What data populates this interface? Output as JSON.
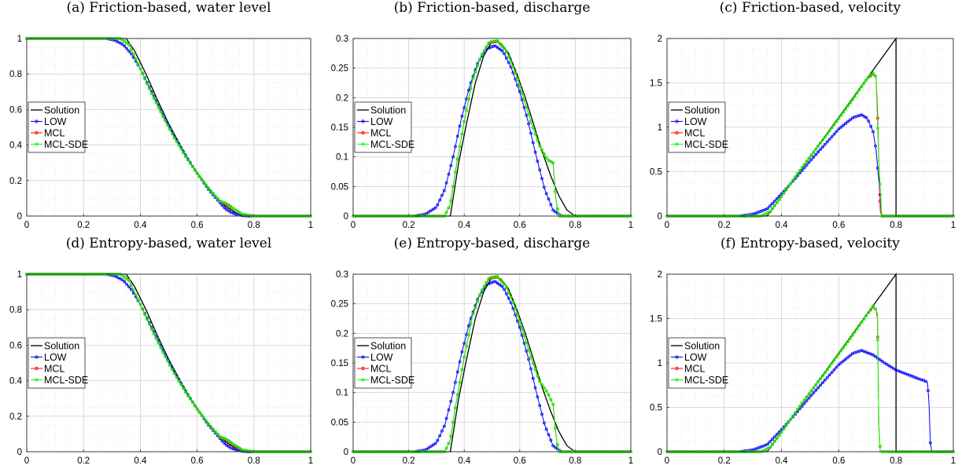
{
  "figure": {
    "panel_titles": [
      "(a) Friction-based, water level",
      "(b) Friction-based, discharge",
      "(c) Friction-based, velocity",
      "(d) Entropy-based, water level",
      "(e) Entropy-based, discharge",
      "(f) Entropy-based, velocity"
    ],
    "legend": [
      "Solution",
      "LOW",
      "MCL",
      "MCL-SDE"
    ],
    "colors": {
      "Solution": "#000000",
      "LOW": "#0000ff",
      "MCL": "#ff0000",
      "MCL-SDE": "#00ff00"
    }
  },
  "chart_data": [
    {
      "type": "line",
      "title": "(a) Friction-based, water level",
      "xlim": [
        0,
        1
      ],
      "ylim": [
        0,
        1
      ],
      "xticks": [
        0,
        0.2,
        0.4,
        0.6,
        0.8,
        1
      ],
      "yticks": [
        0,
        0.2,
        0.4,
        0.6,
        0.8,
        1
      ],
      "grid": true,
      "legend_position": "left",
      "series": [
        {
          "name": "Solution",
          "x": [
            0,
            0.35,
            0.38,
            0.42,
            0.46,
            0.5,
            0.54,
            0.58,
            0.62,
            0.66,
            0.7,
            0.74,
            0.78,
            0.8,
            1
          ],
          "y": [
            1,
            1,
            0.93,
            0.8,
            0.655,
            0.52,
            0.4,
            0.29,
            0.2,
            0.12,
            0.055,
            0.015,
            0.0,
            0,
            0
          ]
        },
        {
          "name": "LOW",
          "x": [
            0,
            0.28,
            0.31,
            0.34,
            0.37,
            0.4,
            0.44,
            0.48,
            0.52,
            0.56,
            0.6,
            0.64,
            0.68,
            0.7,
            0.72,
            0.74,
            0.76,
            0.78,
            1
          ],
          "y": [
            1,
            1,
            0.99,
            0.965,
            0.91,
            0.83,
            0.7,
            0.57,
            0.45,
            0.34,
            0.24,
            0.15,
            0.075,
            0.04,
            0.02,
            0.008,
            0.003,
            0,
            0
          ]
        },
        {
          "name": "MCL",
          "x": [
            0,
            0.33,
            0.36,
            0.4,
            0.44,
            0.48,
            0.52,
            0.56,
            0.6,
            0.64,
            0.68,
            0.71,
            0.73,
            0.76,
            0.8,
            1
          ],
          "y": [
            1,
            1,
            0.965,
            0.83,
            0.69,
            0.56,
            0.44,
            0.335,
            0.24,
            0.155,
            0.085,
            0.06,
            0.04,
            0.01,
            0,
            0
          ]
        },
        {
          "name": "MCL-SDE",
          "x": [
            0,
            0.33,
            0.36,
            0.4,
            0.44,
            0.48,
            0.52,
            0.56,
            0.6,
            0.64,
            0.68,
            0.71,
            0.73,
            0.76,
            0.8,
            1
          ],
          "y": [
            1,
            1,
            0.965,
            0.83,
            0.69,
            0.56,
            0.44,
            0.335,
            0.24,
            0.155,
            0.085,
            0.065,
            0.04,
            0.01,
            0,
            0
          ]
        }
      ]
    },
    {
      "type": "line",
      "title": "(b) Friction-based, discharge",
      "xlim": [
        0,
        1
      ],
      "ylim": [
        0,
        0.3
      ],
      "xticks": [
        0,
        0.2,
        0.4,
        0.6,
        0.8,
        1
      ],
      "yticks": [
        0,
        0.05,
        0.1,
        0.15,
        0.2,
        0.25,
        0.3
      ],
      "grid": true,
      "legend_position": "left",
      "series": [
        {
          "name": "Solution",
          "x": [
            0,
            0.35,
            0.38,
            0.41,
            0.44,
            0.47,
            0.5,
            0.53,
            0.56,
            0.59,
            0.62,
            0.65,
            0.68,
            0.71,
            0.74,
            0.77,
            0.8,
            1
          ],
          "y": [
            0,
            0,
            0.09,
            0.16,
            0.225,
            0.27,
            0.295,
            0.293,
            0.275,
            0.24,
            0.2,
            0.155,
            0.11,
            0.07,
            0.035,
            0.01,
            0,
            0
          ]
        },
        {
          "name": "LOW",
          "x": [
            0,
            0.22,
            0.26,
            0.3,
            0.33,
            0.36,
            0.39,
            0.42,
            0.45,
            0.48,
            0.51,
            0.54,
            0.57,
            0.6,
            0.63,
            0.66,
            0.69,
            0.72,
            0.75,
            1
          ],
          "y": [
            0,
            0,
            0.003,
            0.015,
            0.045,
            0.1,
            0.165,
            0.22,
            0.26,
            0.282,
            0.288,
            0.278,
            0.25,
            0.21,
            0.16,
            0.1,
            0.045,
            0.01,
            0,
            0
          ]
        },
        {
          "name": "MCL",
          "x": [
            0,
            0.33,
            0.35,
            0.37,
            0.4,
            0.43,
            0.46,
            0.49,
            0.52,
            0.55,
            0.58,
            0.61,
            0.64,
            0.67,
            0.7,
            0.72,
            0.73,
            0.74,
            1
          ],
          "y": [
            0,
            0,
            0.02,
            0.08,
            0.16,
            0.23,
            0.27,
            0.293,
            0.295,
            0.28,
            0.248,
            0.205,
            0.16,
            0.12,
            0.095,
            0.09,
            0.03,
            0,
            0
          ]
        },
        {
          "name": "MCL-SDE",
          "x": [
            0,
            0.33,
            0.35,
            0.37,
            0.4,
            0.43,
            0.46,
            0.49,
            0.52,
            0.55,
            0.58,
            0.61,
            0.64,
            0.67,
            0.7,
            0.72,
            0.73,
            0.74,
            1
          ],
          "y": [
            0,
            0,
            0.02,
            0.08,
            0.16,
            0.23,
            0.27,
            0.294,
            0.296,
            0.28,
            0.248,
            0.205,
            0.16,
            0.12,
            0.095,
            0.09,
            0.03,
            0,
            0
          ]
        }
      ]
    },
    {
      "type": "line",
      "title": "(c) Friction-based, velocity",
      "xlim": [
        0,
        1
      ],
      "ylim": [
        0,
        2
      ],
      "xticks": [
        0,
        0.2,
        0.4,
        0.6,
        0.8,
        1
      ],
      "yticks": [
        0,
        0.5,
        1,
        1.5,
        2
      ],
      "grid": true,
      "legend_position": "left",
      "series": [
        {
          "name": "Solution",
          "x": [
            0,
            0.35,
            0.8,
            0.8,
            1
          ],
          "y": [
            0,
            0,
            2.0,
            0,
            0
          ]
        },
        {
          "name": "LOW",
          "x": [
            0,
            0.25,
            0.3,
            0.35,
            0.4,
            0.45,
            0.5,
            0.55,
            0.6,
            0.65,
            0.68,
            0.7,
            0.72,
            0.73,
            0.74,
            0.75,
            1
          ],
          "y": [
            0,
            0,
            0.02,
            0.08,
            0.25,
            0.43,
            0.62,
            0.8,
            0.98,
            1.11,
            1.14,
            1.1,
            0.95,
            0.75,
            0.4,
            0,
            0
          ]
        },
        {
          "name": "MCL",
          "x": [
            0,
            0.33,
            0.36,
            0.4,
            0.45,
            0.5,
            0.55,
            0.6,
            0.65,
            0.7,
            0.72,
            0.73,
            0.735,
            0.745,
            0.75,
            1
          ],
          "y": [
            0,
            0,
            0.05,
            0.22,
            0.45,
            0.67,
            0.88,
            1.1,
            1.32,
            1.55,
            1.6,
            1.57,
            1.22,
            0.05,
            0,
            0
          ]
        },
        {
          "name": "MCL-SDE",
          "x": [
            0,
            0.33,
            0.36,
            0.4,
            0.45,
            0.5,
            0.55,
            0.6,
            0.65,
            0.7,
            0.72,
            0.73,
            0.74,
            0.75,
            1
          ],
          "y": [
            0,
            0,
            0.05,
            0.22,
            0.45,
            0.67,
            0.88,
            1.1,
            1.32,
            1.55,
            1.61,
            1.57,
            0.6,
            0,
            0
          ]
        }
      ]
    },
    {
      "type": "line",
      "title": "(d) Entropy-based, water level",
      "xlim": [
        0,
        1
      ],
      "ylim": [
        0,
        1
      ],
      "xticks": [
        0,
        0.2,
        0.4,
        0.6,
        0.8,
        1
      ],
      "yticks": [
        0,
        0.2,
        0.4,
        0.6,
        0.8,
        1
      ],
      "grid": true,
      "legend_position": "left",
      "series": [
        {
          "name": "Solution",
          "x": [
            0,
            0.35,
            0.38,
            0.42,
            0.46,
            0.5,
            0.54,
            0.58,
            0.62,
            0.66,
            0.7,
            0.74,
            0.78,
            0.8,
            1
          ],
          "y": [
            1,
            1,
            0.93,
            0.8,
            0.655,
            0.52,
            0.4,
            0.29,
            0.2,
            0.12,
            0.055,
            0.015,
            0.0,
            0,
            0
          ]
        },
        {
          "name": "LOW",
          "x": [
            0,
            0.28,
            0.31,
            0.34,
            0.37,
            0.4,
            0.44,
            0.48,
            0.52,
            0.56,
            0.6,
            0.64,
            0.68,
            0.7,
            0.72,
            0.74,
            0.76,
            0.78,
            1
          ],
          "y": [
            1,
            1,
            0.99,
            0.965,
            0.91,
            0.83,
            0.7,
            0.57,
            0.45,
            0.34,
            0.24,
            0.15,
            0.075,
            0.04,
            0.02,
            0.008,
            0.003,
            0,
            0
          ]
        },
        {
          "name": "MCL",
          "x": [
            0,
            0.33,
            0.36,
            0.4,
            0.44,
            0.48,
            0.52,
            0.56,
            0.6,
            0.64,
            0.68,
            0.71,
            0.73,
            0.76,
            0.8,
            1
          ],
          "y": [
            1,
            1,
            0.965,
            0.83,
            0.69,
            0.56,
            0.44,
            0.335,
            0.24,
            0.155,
            0.085,
            0.06,
            0.035,
            0.008,
            0,
            0
          ]
        },
        {
          "name": "MCL-SDE",
          "x": [
            0,
            0.33,
            0.36,
            0.4,
            0.44,
            0.48,
            0.52,
            0.56,
            0.6,
            0.64,
            0.68,
            0.71,
            0.73,
            0.76,
            0.8,
            1
          ],
          "y": [
            1,
            1,
            0.965,
            0.83,
            0.69,
            0.56,
            0.44,
            0.335,
            0.24,
            0.155,
            0.085,
            0.065,
            0.04,
            0.01,
            0,
            0
          ]
        }
      ]
    },
    {
      "type": "line",
      "title": "(e) Entropy-based, discharge",
      "xlim": [
        0,
        1
      ],
      "ylim": [
        0,
        0.3
      ],
      "xticks": [
        0,
        0.2,
        0.4,
        0.6,
        0.8,
        1
      ],
      "yticks": [
        0,
        0.05,
        0.1,
        0.15,
        0.2,
        0.25,
        0.3
      ],
      "grid": true,
      "legend_position": "left",
      "series": [
        {
          "name": "Solution",
          "x": [
            0,
            0.35,
            0.38,
            0.41,
            0.44,
            0.47,
            0.5,
            0.53,
            0.56,
            0.59,
            0.62,
            0.65,
            0.68,
            0.71,
            0.74,
            0.77,
            0.8,
            1
          ],
          "y": [
            0,
            0,
            0.09,
            0.16,
            0.225,
            0.27,
            0.295,
            0.293,
            0.275,
            0.24,
            0.2,
            0.155,
            0.11,
            0.07,
            0.035,
            0.01,
            0,
            0
          ]
        },
        {
          "name": "LOW",
          "x": [
            0,
            0.22,
            0.26,
            0.3,
            0.33,
            0.36,
            0.39,
            0.42,
            0.45,
            0.48,
            0.51,
            0.54,
            0.57,
            0.6,
            0.63,
            0.66,
            0.69,
            0.72,
            0.75,
            1
          ],
          "y": [
            0,
            0,
            0.003,
            0.015,
            0.045,
            0.1,
            0.165,
            0.22,
            0.26,
            0.282,
            0.288,
            0.278,
            0.25,
            0.21,
            0.16,
            0.1,
            0.045,
            0.01,
            0,
            0
          ]
        },
        {
          "name": "MCL",
          "x": [
            0,
            0.33,
            0.35,
            0.37,
            0.4,
            0.43,
            0.46,
            0.49,
            0.52,
            0.55,
            0.58,
            0.61,
            0.64,
            0.67,
            0.7,
            0.72,
            0.73,
            0.74,
            1
          ],
          "y": [
            0,
            0,
            0.02,
            0.08,
            0.16,
            0.23,
            0.27,
            0.293,
            0.295,
            0.28,
            0.248,
            0.205,
            0.16,
            0.12,
            0.1,
            0.08,
            0.03,
            0,
            0
          ]
        },
        {
          "name": "MCL-SDE",
          "x": [
            0,
            0.33,
            0.35,
            0.37,
            0.4,
            0.43,
            0.46,
            0.49,
            0.52,
            0.55,
            0.58,
            0.61,
            0.64,
            0.67,
            0.7,
            0.72,
            0.73,
            0.74,
            1
          ],
          "y": [
            0,
            0,
            0.02,
            0.08,
            0.16,
            0.23,
            0.27,
            0.294,
            0.296,
            0.28,
            0.248,
            0.205,
            0.16,
            0.12,
            0.1,
            0.08,
            0.03,
            0,
            0
          ]
        }
      ]
    },
    {
      "type": "line",
      "title": "(f) Entropy-based, velocity",
      "xlim": [
        0,
        1
      ],
      "ylim": [
        0,
        2
      ],
      "xticks": [
        0,
        0.2,
        0.4,
        0.6,
        0.8,
        1
      ],
      "yticks": [
        0,
        0.5,
        1,
        1.5,
        2
      ],
      "grid": true,
      "legend_position": "left",
      "series": [
        {
          "name": "Solution",
          "x": [
            0,
            0.35,
            0.8,
            0.8,
            1
          ],
          "y": [
            0,
            0,
            2.0,
            0,
            0
          ]
        },
        {
          "name": "LOW",
          "x": [
            0,
            0.25,
            0.3,
            0.35,
            0.4,
            0.45,
            0.5,
            0.55,
            0.6,
            0.65,
            0.68,
            0.72,
            0.76,
            0.8,
            0.84,
            0.88,
            0.9,
            0.91,
            0.915,
            0.92,
            0.925,
            1
          ],
          "y": [
            0,
            0,
            0.02,
            0.08,
            0.25,
            0.43,
            0.62,
            0.8,
            0.98,
            1.11,
            1.14,
            1.09,
            1.0,
            0.92,
            0.87,
            0.82,
            0.8,
            0.78,
            0.55,
            0.1,
            0,
            0
          ]
        },
        {
          "name": "MCL",
          "x": [
            0,
            0.33,
            0.36,
            0.4,
            0.45,
            0.5,
            0.55,
            0.6,
            0.65,
            0.7,
            0.72,
            0.73,
            0.735,
            0.74,
            0.745,
            1
          ],
          "y": [
            0,
            0,
            0.05,
            0.22,
            0.45,
            0.67,
            0.88,
            1.1,
            1.32,
            1.55,
            1.63,
            1.6,
            1.54,
            0.3,
            0,
            0
          ]
        },
        {
          "name": "MCL-SDE",
          "x": [
            0,
            0.33,
            0.36,
            0.4,
            0.45,
            0.5,
            0.55,
            0.6,
            0.65,
            0.7,
            0.72,
            0.73,
            0.735,
            0.74,
            0.745,
            1
          ],
          "y": [
            0,
            0,
            0.05,
            0.22,
            0.45,
            0.67,
            0.88,
            1.1,
            1.32,
            1.55,
            1.64,
            1.6,
            1.5,
            0.3,
            0,
            0
          ]
        }
      ]
    }
  ]
}
